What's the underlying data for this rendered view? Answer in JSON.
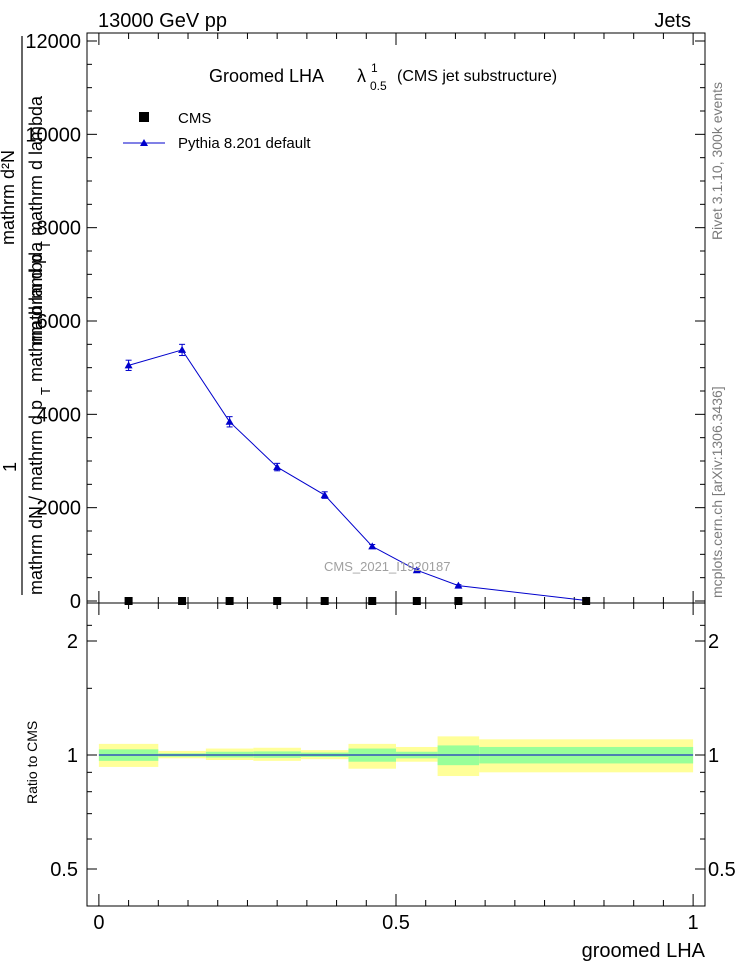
{
  "header": {
    "left": "13000 GeV pp",
    "right": "Jets"
  },
  "title": {
    "main": "Groomed LHA",
    "lambda": "λ",
    "sup": "1",
    "sub": "0.5",
    "suffix": "(CMS jet substructure)"
  },
  "side_labels": {
    "rivet": "Rivet 3.1.10,  300k events",
    "mcplots": "mcplots.cern.ch [arXiv:1306.3436]"
  },
  "watermark": "CMS_2021_I1920187",
  "y_axis_label": {
    "numerator_prefix": "1",
    "fraction_top": "mathrm d²N",
    "fraction_bottom": "mathrm dN / mathrm d p",
    "fraction_bottom_sub": "T",
    "fraction_bottom_tail": " mathrm d lambda",
    "overlay_top": "mathrm d p",
    "overlay_top_sub": "T",
    "overlay_top_tail": " mathrm d lambda"
  },
  "chart_data": [
    {
      "type": "line",
      "panel": "main",
      "ylim": [
        0,
        12200
      ],
      "xlim": [
        -0.02,
        1.02
      ],
      "yticks": [
        0,
        2000,
        4000,
        6000,
        8000,
        10000,
        12000
      ],
      "ytick_labels": [
        "0",
        "2000",
        "4000",
        "6000",
        "8000",
        "10000",
        "12000"
      ],
      "legend": [
        "CMS",
        "Pythia 8.201 default"
      ],
      "legend_position": "top-left",
      "series": [
        {
          "name": "CMS",
          "marker": "square",
          "color": "#000000",
          "x": [
            0.05,
            0.14,
            0.22,
            0.3,
            0.38,
            0.46,
            0.535,
            0.605,
            0.82
          ],
          "y": [
            0,
            0,
            0,
            0,
            0,
            0,
            0,
            0,
            0
          ]
        },
        {
          "name": "Pythia 8.201 default",
          "marker": "triangle",
          "color": "#0000cc",
          "x": [
            0.05,
            0.14,
            0.22,
            0.3,
            0.38,
            0.46,
            0.535,
            0.605,
            0.82
          ],
          "y": [
            5050,
            5380,
            3840,
            2870,
            2270,
            1170,
            660,
            330,
            10
          ],
          "err": [
            110,
            120,
            110,
            80,
            70,
            40,
            30,
            20,
            5
          ]
        }
      ]
    },
    {
      "type": "area",
      "panel": "ratio",
      "ylabel": "Ratio to CMS",
      "xlabel": "groomed LHA",
      "ylim": [
        0.34,
        2.29
      ],
      "xlim": [
        -0.02,
        1.02
      ],
      "yticks": [
        0.5,
        1,
        2
      ],
      "ytick_labels": [
        "0.5",
        "1",
        "2"
      ],
      "xticks": [
        0,
        0.5,
        1
      ],
      "xtick_labels": [
        "0",
        "0.5",
        "1"
      ],
      "bins": [
        {
          "x0": 0.0,
          "x1": 0.1,
          "yellow": [
            0.93,
            1.07
          ],
          "green": [
            0.965,
            1.035
          ]
        },
        {
          "x0": 0.1,
          "x1": 0.18,
          "yellow": [
            0.98,
            1.025
          ],
          "green": [
            0.99,
            1.01
          ]
        },
        {
          "x0": 0.18,
          "x1": 0.26,
          "yellow": [
            0.97,
            1.04
          ],
          "green": [
            0.985,
            1.02
          ]
        },
        {
          "x0": 0.26,
          "x1": 0.34,
          "yellow": [
            0.965,
            1.045
          ],
          "green": [
            0.983,
            1.022
          ]
        },
        {
          "x0": 0.34,
          "x1": 0.42,
          "yellow": [
            0.975,
            1.03
          ],
          "green": [
            0.988,
            1.015
          ]
        },
        {
          "x0": 0.42,
          "x1": 0.5,
          "yellow": [
            0.92,
            1.07
          ],
          "green": [
            0.96,
            1.04
          ]
        },
        {
          "x0": 0.5,
          "x1": 0.57,
          "yellow": [
            0.96,
            1.05
          ],
          "green": [
            0.98,
            1.02
          ]
        },
        {
          "x0": 0.57,
          "x1": 0.64,
          "yellow": [
            0.88,
            1.12
          ],
          "green": [
            0.94,
            1.06
          ]
        },
        {
          "x0": 0.64,
          "x1": 1.0,
          "yellow": [
            0.9,
            1.1
          ],
          "green": [
            0.95,
            1.05
          ]
        }
      ]
    }
  ]
}
